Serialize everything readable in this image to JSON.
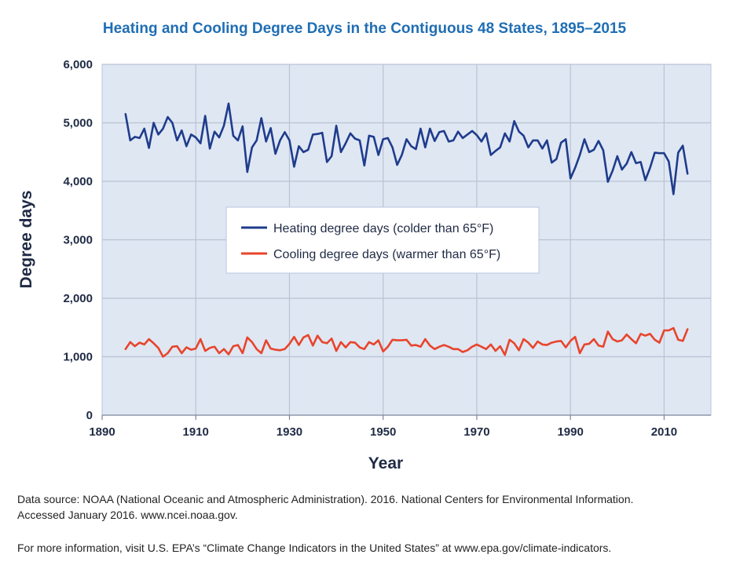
{
  "chart_data": {
    "type": "line",
    "title": "Heating and Cooling Degree Days in the Contiguous 48 States, 1895–2015",
    "xlabel": "Year",
    "ylabel": "Degree days",
    "xlim": [
      1890,
      2020
    ],
    "ylim": [
      0,
      6000
    ],
    "x_ticks": [
      1890,
      1910,
      1930,
      1950,
      1970,
      1990,
      2010
    ],
    "y_ticks": [
      0,
      1000,
      2000,
      3000,
      4000,
      5000,
      6000
    ],
    "x_tick_labels": [
      "1890",
      "1910",
      "1930",
      "1950",
      "1970",
      "1990",
      "2010"
    ],
    "y_tick_labels": [
      "0",
      "1,000",
      "2,000",
      "3,000",
      "4,000",
      "5,000",
      "6,000"
    ],
    "grid": true,
    "legend_position": "center",
    "x_start": 1895,
    "series": [
      {
        "name": "Heating degree days (colder than 65°F)",
        "color": "#1f3c8c",
        "values": [
          5150,
          4700,
          4760,
          4740,
          4900,
          4570,
          5000,
          4800,
          4900,
          5100,
          5000,
          4700,
          4870,
          4600,
          4800,
          4750,
          4650,
          5120,
          4560,
          4850,
          4750,
          4950,
          5330,
          4780,
          4700,
          4940,
          4160,
          4580,
          4700,
          5080,
          4680,
          4910,
          4470,
          4700,
          4840,
          4700,
          4250,
          4600,
          4500,
          4540,
          4800,
          4810,
          4830,
          4330,
          4430,
          4950,
          4500,
          4650,
          4820,
          4730,
          4700,
          4270,
          4780,
          4760,
          4450,
          4720,
          4740,
          4580,
          4280,
          4450,
          4720,
          4600,
          4550,
          4900,
          4580,
          4900,
          4690,
          4840,
          4860,
          4680,
          4700,
          4850,
          4740,
          4800,
          4860,
          4790,
          4680,
          4820,
          4450,
          4520,
          4580,
          4820,
          4680,
          5030,
          4850,
          4780,
          4580,
          4700,
          4700,
          4560,
          4700,
          4320,
          4380,
          4660,
          4720,
          4050,
          4230,
          4450,
          4720,
          4500,
          4540,
          4690,
          4530,
          3990,
          4180,
          4430,
          4200,
          4300,
          4500,
          4310,
          4330,
          4020,
          4230,
          4490,
          4480,
          4480,
          4340,
          3780,
          4490,
          4610,
          4130
        ]
      },
      {
        "name": "Cooling degree days (warmer than 65°F)",
        "color": "#e8452c",
        "values": [
          1130,
          1250,
          1180,
          1240,
          1210,
          1300,
          1230,
          1150,
          1000,
          1060,
          1170,
          1180,
          1060,
          1160,
          1120,
          1140,
          1300,
          1100,
          1150,
          1170,
          1060,
          1130,
          1040,
          1180,
          1200,
          1060,
          1330,
          1250,
          1130,
          1060,
          1280,
          1140,
          1120,
          1110,
          1130,
          1220,
          1340,
          1200,
          1330,
          1370,
          1190,
          1360,
          1250,
          1230,
          1310,
          1100,
          1250,
          1160,
          1250,
          1240,
          1160,
          1130,
          1250,
          1210,
          1280,
          1090,
          1170,
          1290,
          1280,
          1280,
          1290,
          1190,
          1200,
          1170,
          1300,
          1190,
          1130,
          1170,
          1200,
          1170,
          1130,
          1130,
          1080,
          1110,
          1170,
          1210,
          1170,
          1130,
          1210,
          1100,
          1180,
          1030,
          1290,
          1230,
          1110,
          1300,
          1240,
          1150,
          1260,
          1210,
          1200,
          1240,
          1260,
          1270,
          1160,
          1270,
          1340,
          1060,
          1210,
          1220,
          1300,
          1190,
          1170,
          1430,
          1300,
          1260,
          1280,
          1380,
          1300,
          1230,
          1390,
          1360,
          1390,
          1290,
          1240,
          1450,
          1450,
          1490,
          1290,
          1270,
          1470
        ]
      }
    ]
  },
  "notes": {
    "source_line1": "Data source: NOAA (National Oceanic and Atmospheric Administration). 2016. National Centers for Environmental Information.",
    "source_line2": "Accessed January 2016. www.ncei.noaa.gov.",
    "more_info": "For more information, visit U.S. EPA’s “Climate Change Indicators in the United States” at www.epa.gov/climate-indicators."
  }
}
